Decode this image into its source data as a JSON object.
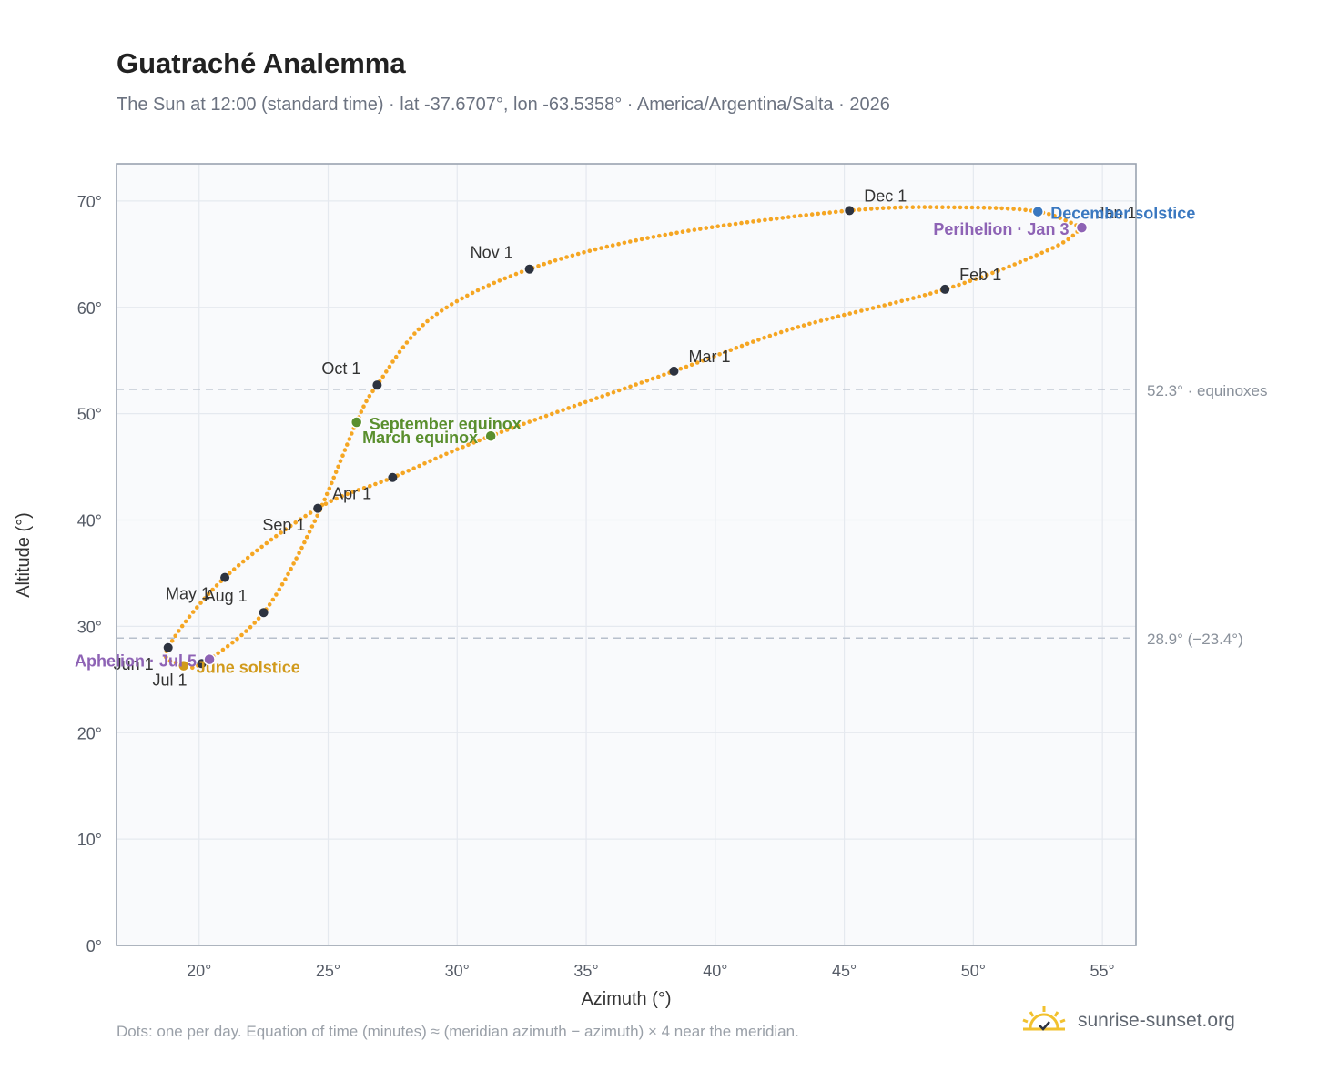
{
  "header": {
    "title": "Guatraché Analemma",
    "subtitle": "The Sun at 12:00 (standard time) · lat -37.6707°, lon -63.5358° · America/Argentina/Salta · 2026"
  },
  "footer": {
    "note": "Dots: one per day. Equation of time (minutes) ≈ (meridian azimuth − azimuth) × 4 near the meridian.",
    "brand": "sunrise-sunset.org",
    "brand_icon": "sun-horizon-check-icon"
  },
  "colors": {
    "path": "#f5a623",
    "month_dot": "#2d3340",
    "equinox": "#5a8f2e",
    "december_solstice": "#3a78c0",
    "june_solstice": "#d19a1c",
    "apsides": "#8e63b5",
    "grid": "#e5e9ef",
    "frame": "#9aa3b0",
    "ref_line": "#b8c0cc"
  },
  "chart_data": {
    "type": "scatter",
    "xlabel": "Azimuth (°)",
    "ylabel": "Altitude (°)",
    "xlim": [
      16.8,
      56.3
    ],
    "ylim": [
      0,
      73.5
    ],
    "x_ticks": [
      20,
      25,
      30,
      35,
      40,
      45,
      50,
      55
    ],
    "y_ticks": [
      0,
      10,
      20,
      30,
      40,
      50,
      60,
      70
    ],
    "x_tick_labels": [
      "20°",
      "25°",
      "30°",
      "35°",
      "40°",
      "45°",
      "50°",
      "55°"
    ],
    "y_tick_labels": [
      "0°",
      "10°",
      "20°",
      "30°",
      "40°",
      "50°",
      "60°",
      "70°"
    ],
    "grid": true,
    "path_anchors": [
      {
        "x": 54.2,
        "y": 67.5
      },
      {
        "x": 53.0,
        "y": 65.5
      },
      {
        "x": 48.9,
        "y": 61.7
      },
      {
        "x": 43.0,
        "y": 58.0
      },
      {
        "x": 38.4,
        "y": 54.0
      },
      {
        "x": 31.3,
        "y": 47.9
      },
      {
        "x": 27.5,
        "y": 44.0
      },
      {
        "x": 24.6,
        "y": 41.1
      },
      {
        "x": 21.0,
        "y": 34.6
      },
      {
        "x": 18.8,
        "y": 28.0
      },
      {
        "x": 19.2,
        "y": 26.5
      },
      {
        "x": 20.1,
        "y": 26.5
      },
      {
        "x": 22.5,
        "y": 31.3
      },
      {
        "x": 24.5,
        "y": 40.0
      },
      {
        "x": 26.1,
        "y": 49.2
      },
      {
        "x": 26.9,
        "y": 52.7
      },
      {
        "x": 29.0,
        "y": 59.0
      },
      {
        "x": 32.8,
        "y": 63.6
      },
      {
        "x": 38.0,
        "y": 66.8
      },
      {
        "x": 45.2,
        "y": 69.1
      },
      {
        "x": 49.5,
        "y": 69.4
      },
      {
        "x": 52.5,
        "y": 69.0
      },
      {
        "x": 54.2,
        "y": 67.5
      }
    ],
    "month_markers": [
      {
        "label": "Jan 1",
        "x": 54.2,
        "y": 67.5,
        "anchor": "right-above"
      },
      {
        "label": "Feb 1",
        "x": 48.9,
        "y": 61.7,
        "anchor": "right-above"
      },
      {
        "label": "Mar 1",
        "x": 38.4,
        "y": 54.0,
        "anchor": "right-above"
      },
      {
        "label": "Apr 1",
        "x": 24.6,
        "y": 41.1,
        "anchor": "right-above"
      },
      {
        "label": "May 1",
        "x": 21.0,
        "y": 34.6,
        "anchor": "left-below"
      },
      {
        "label": "Jun 1",
        "x": 18.8,
        "y": 28.0,
        "anchor": "left-below"
      },
      {
        "label": "Jul 1",
        "x": 20.1,
        "y": 26.5,
        "anchor": "left-below"
      },
      {
        "label": "Aug 1",
        "x": 22.5,
        "y": 31.3,
        "anchor": "left-above"
      },
      {
        "label": "Sep 1",
        "x": 27.5,
        "y": 44.0,
        "anchor": "far-left-below"
      },
      {
        "label": "Oct 1",
        "x": 26.9,
        "y": 52.7,
        "anchor": "left-above"
      },
      {
        "label": "Nov 1",
        "x": 32.8,
        "y": 63.6,
        "anchor": "left-above"
      },
      {
        "label": "Dec 1",
        "x": 45.2,
        "y": 69.1,
        "anchor": "right-above"
      }
    ],
    "events": [
      {
        "label": "March equinox",
        "x": 31.3,
        "y": 47.9,
        "color": "#5a8f2e",
        "anchor": "left"
      },
      {
        "label": "September equinox",
        "x": 26.1,
        "y": 49.2,
        "color": "#5a8f2e",
        "anchor": "right"
      },
      {
        "label": "December solstice",
        "x": 52.5,
        "y": 69.0,
        "color": "#3a78c0",
        "anchor": "right"
      },
      {
        "label": "June solstice",
        "x": 19.4,
        "y": 26.3,
        "color": "#d19a1c",
        "anchor": "right"
      },
      {
        "label": "Perihelion · Jan 3",
        "x": 54.2,
        "y": 67.5,
        "color": "#8e63b5",
        "anchor": "left"
      },
      {
        "label": "Aphelion · Jul 5",
        "x": 20.4,
        "y": 26.9,
        "color": "#8e63b5",
        "anchor": "left"
      }
    ],
    "reference_lines": [
      {
        "y": 52.3,
        "label": "52.3° · equinoxes"
      },
      {
        "y": 28.9,
        "label": "28.9° (−23.4°)"
      }
    ]
  }
}
